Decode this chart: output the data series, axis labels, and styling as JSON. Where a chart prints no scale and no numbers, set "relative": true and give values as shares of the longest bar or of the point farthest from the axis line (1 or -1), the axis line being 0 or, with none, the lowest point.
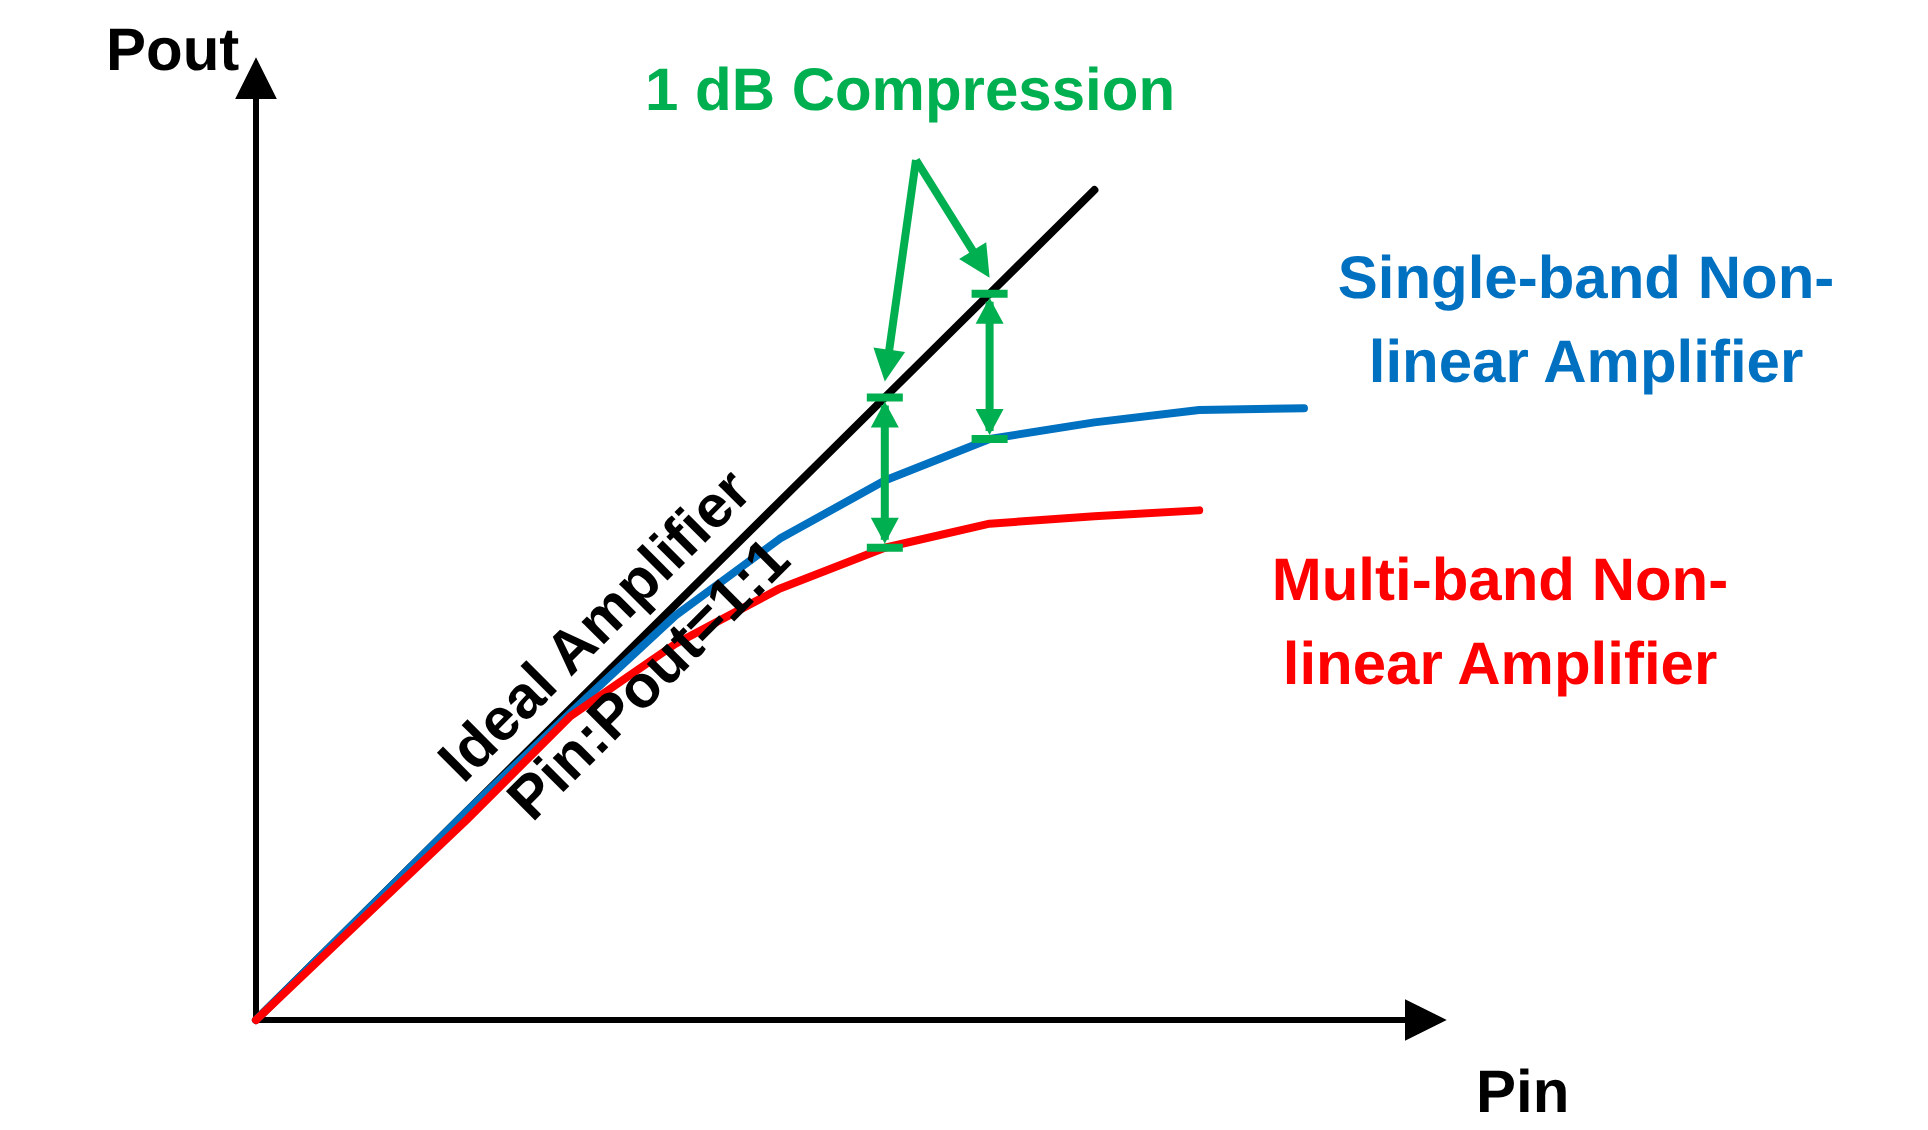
{
  "chart_data": {
    "type": "line",
    "relative": true,
    "xlabel": "Pin",
    "ylabel": "Pout",
    "categories": [
      null,
      null,
      null,
      null,
      null,
      null,
      null,
      null,
      null,
      null,
      null,
      null
    ],
    "series": [
      {
        "name": "Ideal Amplifier\nPin:Pout=1:1",
        "color": "#000000",
        "values": [
          0,
          0.125,
          0.25,
          0.375,
          0.5,
          0.625,
          0.75,
          0.875,
          1,
          null,
          null,
          null
        ]
      },
      {
        "name": "Single-band Non-\nlinear Amplifier",
        "color": "#0070c0",
        "values": [
          0,
          0.125,
          0.25,
          0.37,
          0.487,
          0.58,
          0.65,
          0.7,
          0.72,
          0.735,
          0.737,
          null
        ]
      },
      {
        "name": "Multi-band Non-\nlinear Amplifier",
        "color": "#ff0000",
        "values": [
          0,
          0.12,
          0.24,
          0.366,
          0.453,
          0.52,
          0.569,
          0.598,
          0.607,
          0.614,
          null,
          null
        ]
      }
    ],
    "annotations": [
      "1 dB Compression"
    ],
    "line_style": "solid"
  }
}
